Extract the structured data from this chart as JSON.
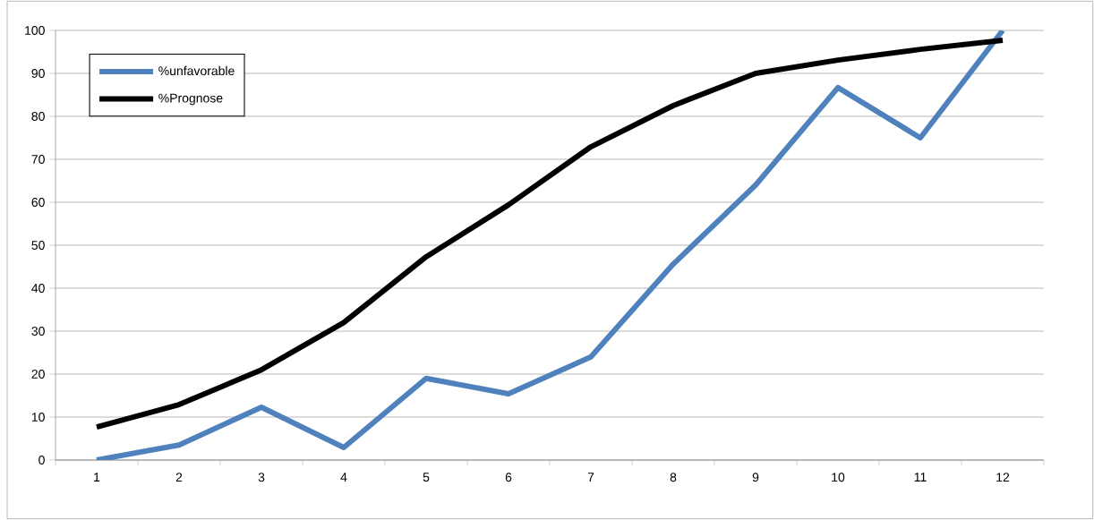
{
  "chart_data": {
    "type": "line",
    "categories": [
      "1",
      "2",
      "3",
      "4",
      "5",
      "6",
      "7",
      "8",
      "9",
      "10",
      "11",
      "12"
    ],
    "series": [
      {
        "name": "%unfavorable",
        "color": "#4f81bd",
        "values": [
          0,
          3.5,
          12.3,
          2.9,
          19,
          15.4,
          24,
          45.6,
          64,
          86.7,
          75,
          100
        ]
      },
      {
        "name": "%Prognose",
        "color": "#000000",
        "values": [
          7.7,
          12.9,
          21,
          32,
          47.3,
          59.4,
          72.9,
          82.5,
          90,
          93.1,
          95.6,
          97.7
        ]
      }
    ],
    "ylim": [
      0,
      100
    ],
    "yticks": [
      0,
      10,
      20,
      30,
      40,
      50,
      60,
      70,
      80,
      90,
      100
    ],
    "grid": "y",
    "legend": "top left",
    "marker": "none",
    "line_style": "solid"
  }
}
